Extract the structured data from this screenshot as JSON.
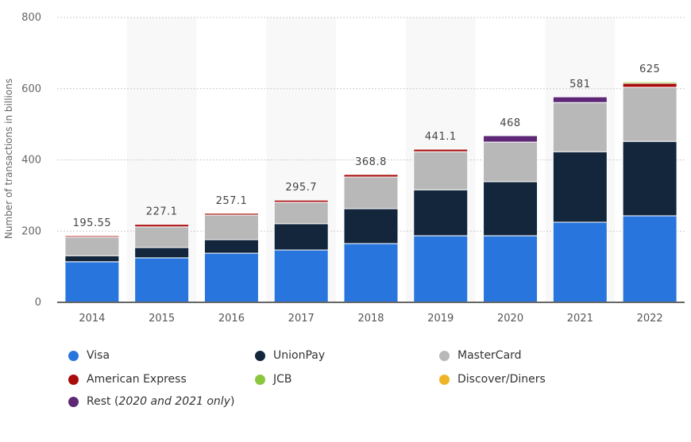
{
  "chart_data": {
    "type": "bar",
    "stacked": true,
    "title": "",
    "xlabel": "",
    "ylabel": "Number of transactions in billions",
    "ylim": [
      0,
      800
    ],
    "yticks": [
      0,
      200,
      400,
      600,
      800
    ],
    "grid": true,
    "legend_position": "bottom",
    "categories": [
      "2014",
      "2015",
      "2016",
      "2017",
      "2018",
      "2019",
      "2020",
      "2021",
      "2022"
    ],
    "totals": [
      "195.55",
      "227.1",
      "257.1",
      "295.7",
      "368.8",
      "441.1",
      "468",
      "581",
      "625"
    ],
    "series": [
      {
        "name": "Visa",
        "color": "#2876dd",
        "values": [
          114,
          125,
          138,
          147,
          165,
          187,
          187,
          225,
          243
        ]
      },
      {
        "name": "UnionPay",
        "color": "#13263c",
        "values": [
          17,
          29,
          38,
          74,
          98,
          129,
          152,
          198,
          209
        ]
      },
      {
        "name": "MasterCard",
        "color": "#b8b8b8",
        "values": [
          52,
          58,
          69,
          60,
          89,
          107,
          111,
          138,
          152
        ]
      },
      {
        "name": "American Express",
        "color": "#a80c0c",
        "values": [
          4,
          7,
          5,
          6,
          7,
          7,
          0,
          0,
          11
        ]
      },
      {
        "name": "JCB",
        "color": "#8cc63e",
        "values": [
          0,
          0,
          0,
          0,
          0,
          0,
          0,
          0,
          4
        ]
      },
      {
        "name": "Discover/Diners",
        "color": "#f0b428",
        "values": [
          0,
          0,
          0,
          0,
          0,
          0,
          0,
          0,
          0
        ]
      },
      {
        "name": "Rest",
        "color": "#5f2877",
        "values": [
          0,
          0,
          0,
          0,
          0,
          0,
          18,
          16,
          0
        ]
      }
    ]
  },
  "legend": {
    "items": [
      {
        "label": "Visa",
        "color": "#2876dd"
      },
      {
        "label": "UnionPay",
        "color": "#13263c"
      },
      {
        "label": "MasterCard",
        "color": "#b8b8b8"
      },
      {
        "label": "American Express",
        "color": "#a80c0c"
      },
      {
        "label": "JCB",
        "color": "#8cc63e"
      },
      {
        "label": "Discover/Diners",
        "color": "#f0b428"
      },
      {
        "label": "Rest",
        "label_note": "2020 and 2021 only",
        "color": "#5f2877"
      }
    ]
  }
}
